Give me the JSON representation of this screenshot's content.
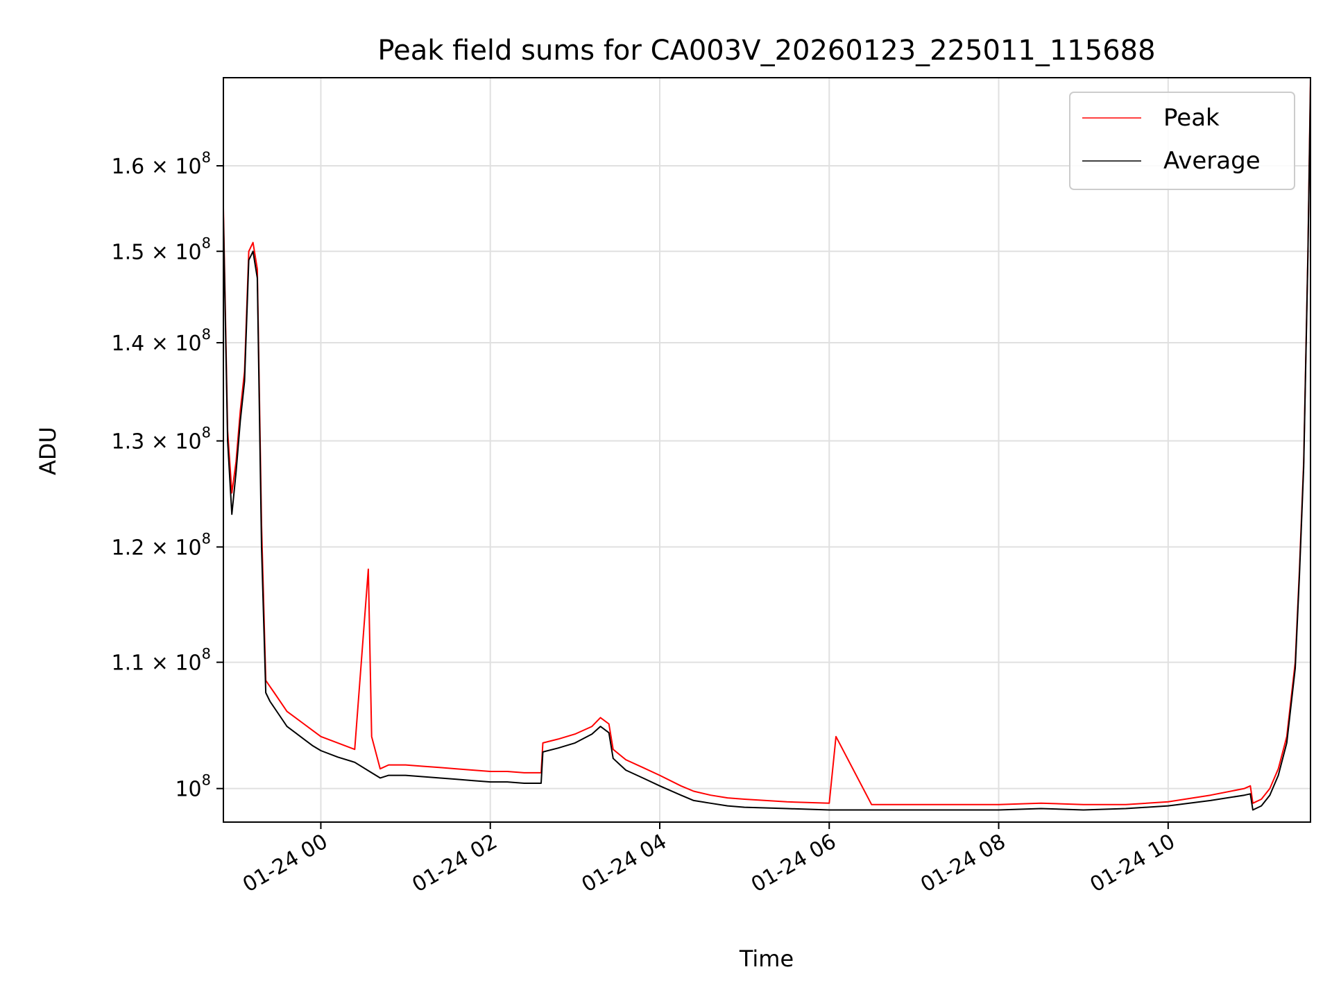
{
  "chart_data": {
    "type": "line",
    "title": "Peak field sums for CA003V_20260123_225011_115688",
    "xlabel": "Time",
    "ylabel": "ADU",
    "yscale": "log",
    "grid": true,
    "legend_position": "top-right",
    "x_unit": "hours",
    "xlim": [
      -1.15,
      11.68
    ],
    "ylim": [
      97500000,
      171000000
    ],
    "x_ticks": [
      {
        "value": 0,
        "label": "01-24 00"
      },
      {
        "value": 2,
        "label": "01-24 02"
      },
      {
        "value": 4,
        "label": "01-24 04"
      },
      {
        "value": 6,
        "label": "01-24 06"
      },
      {
        "value": 8,
        "label": "01-24 08"
      },
      {
        "value": 10,
        "label": "01-24 10"
      }
    ],
    "y_ticks": [
      {
        "value": 100000000,
        "label": "10",
        "exp": "8"
      },
      {
        "value": 110000000,
        "label": "1.1 × 10",
        "exp": "8"
      },
      {
        "value": 120000000,
        "label": "1.2 × 10",
        "exp": "8"
      },
      {
        "value": 130000000,
        "label": "1.3 × 10",
        "exp": "8"
      },
      {
        "value": 140000000,
        "label": "1.4 × 10",
        "exp": "8"
      },
      {
        "value": 150000000,
        "label": "1.5 × 10",
        "exp": "8"
      },
      {
        "value": 160000000,
        "label": "1.6 × 10",
        "exp": "8"
      }
    ],
    "series": [
      {
        "name": "Peak",
        "color": "#ff0000",
        "x": [
          -1.15,
          -1.1,
          -1.05,
          -1.0,
          -0.95,
          -0.9,
          -0.85,
          -0.8,
          -0.75,
          -0.7,
          -0.65,
          -0.6,
          -0.55,
          -0.5,
          -0.45,
          -0.4,
          -0.3,
          -0.2,
          -0.1,
          0.0,
          0.2,
          0.4,
          0.56,
          0.6,
          0.7,
          0.8,
          1.0,
          1.2,
          1.4,
          1.6,
          1.8,
          2.0,
          2.2,
          2.4,
          2.6,
          2.62,
          2.8,
          3.0,
          3.2,
          3.3,
          3.4,
          3.45,
          3.6,
          3.8,
          4.0,
          4.25,
          4.4,
          4.6,
          4.8,
          5.0,
          5.5,
          6.0,
          6.08,
          6.5,
          7.0,
          7.5,
          8.0,
          8.5,
          9.0,
          9.5,
          10.0,
          10.5,
          10.9,
          10.97,
          11.0,
          11.1,
          11.2,
          11.3,
          11.4,
          11.5,
          11.55,
          11.6,
          11.65,
          11.68
        ],
        "values": [
          155000000,
          131000000,
          125000000,
          128000000,
          133000000,
          137000000,
          150000000,
          151000000,
          148000000,
          122000000,
          108500000,
          108000000,
          107500000,
          107000000,
          106500000,
          106000000,
          105500000,
          105000000,
          104500000,
          104000000,
          103500000,
          103000000,
          118000000,
          104000000,
          101500000,
          101800000,
          101800000,
          101700000,
          101600000,
          101500000,
          101400000,
          101300000,
          101300000,
          101200000,
          101200000,
          103500000,
          103800000,
          104200000,
          104800000,
          105500000,
          105000000,
          103000000,
          102200000,
          101600000,
          101000000,
          100200000,
          99800000,
          99500000,
          99300000,
          99200000,
          99000000,
          98900000,
          104000000,
          98800000,
          98800000,
          98800000,
          98800000,
          98900000,
          98800000,
          98800000,
          99000000,
          99500000,
          100000000,
          100200000,
          98900000,
          99200000,
          100000000,
          101500000,
          104000000,
          110000000,
          118000000,
          128000000,
          150000000,
          171000000
        ]
      },
      {
        "name": "Average",
        "color": "#000000",
        "x": [
          -1.15,
          -1.1,
          -1.05,
          -1.0,
          -0.95,
          -0.9,
          -0.85,
          -0.8,
          -0.75,
          -0.7,
          -0.65,
          -0.6,
          -0.55,
          -0.5,
          -0.45,
          -0.4,
          -0.3,
          -0.2,
          -0.1,
          0.0,
          0.2,
          0.4,
          0.6,
          0.7,
          0.8,
          1.0,
          1.2,
          1.4,
          1.6,
          1.8,
          2.0,
          2.2,
          2.4,
          2.6,
          2.62,
          2.8,
          3.0,
          3.2,
          3.3,
          3.4,
          3.45,
          3.6,
          3.8,
          4.0,
          4.25,
          4.4,
          4.6,
          4.8,
          5.0,
          5.5,
          6.0,
          6.5,
          7.0,
          7.5,
          8.0,
          8.5,
          9.0,
          9.5,
          10.0,
          10.5,
          10.9,
          10.97,
          11.0,
          11.1,
          11.2,
          11.3,
          11.4,
          11.5,
          11.55,
          11.6,
          11.65,
          11.68
        ],
        "values": [
          154000000,
          130000000,
          123000000,
          127000000,
          132000000,
          136000000,
          149000000,
          150000000,
          147000000,
          120000000,
          107500000,
          106800000,
          106300000,
          105800000,
          105300000,
          104800000,
          104300000,
          103800000,
          103300000,
          102900000,
          102400000,
          102000000,
          101200000,
          100800000,
          101000000,
          101000000,
          100900000,
          100800000,
          100700000,
          100600000,
          100500000,
          100500000,
          100400000,
          100400000,
          102800000,
          103100000,
          103500000,
          104200000,
          104800000,
          104300000,
          102300000,
          101400000,
          100800000,
          100200000,
          99500000,
          99100000,
          98900000,
          98700000,
          98600000,
          98500000,
          98400000,
          98400000,
          98400000,
          98400000,
          98400000,
          98500000,
          98400000,
          98500000,
          98700000,
          99100000,
          99500000,
          99600000,
          98400000,
          98700000,
          99500000,
          101000000,
          103500000,
          109500000,
          117500000,
          127500000,
          149500000,
          170000000
        ]
      }
    ]
  }
}
